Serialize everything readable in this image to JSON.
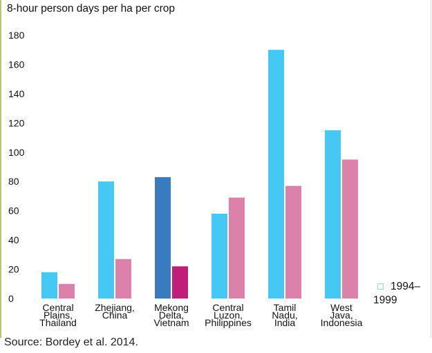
{
  "chart_data": {
    "type": "bar",
    "ylabel": "8-hour person days per ha per crop",
    "ylim": [
      0,
      180
    ],
    "yticks": [
      0,
      20,
      40,
      60,
      80,
      100,
      120,
      140,
      160,
      180
    ],
    "grid": false,
    "categories": [
      [
        "Central",
        "Plains,",
        "Thailand"
      ],
      [
        "Zhejiang,",
        "China"
      ],
      [
        "Mekong",
        "Delta,",
        "Vietnam"
      ],
      [
        "Central",
        "Luzon,",
        "Philippines"
      ],
      [
        "Tamil",
        "Nadu,",
        "India"
      ],
      [
        "West",
        "Java,",
        "Indonesia"
      ]
    ],
    "series": [
      {
        "name": "1994–1999",
        "values": [
          18,
          80,
          83,
          58,
          170,
          115
        ],
        "colors": [
          "#45c8f3",
          "#45c8f3",
          "#3a7abf",
          "#45c8f3",
          "#45c8f3",
          "#45c8f3"
        ]
      },
      {
        "values": [
          10,
          27,
          22,
          69,
          77,
          95
        ],
        "colors": [
          "#dc82aa",
          "#dc82aa",
          "#bf1f78",
          "#dc82aa",
          "#dc82aa",
          "#dc82aa"
        ]
      }
    ],
    "legend": {
      "placement": "right",
      "label_line1": "1994–",
      "label_line2": "1999"
    }
  },
  "source": "Source: Bordey et al. 2014."
}
